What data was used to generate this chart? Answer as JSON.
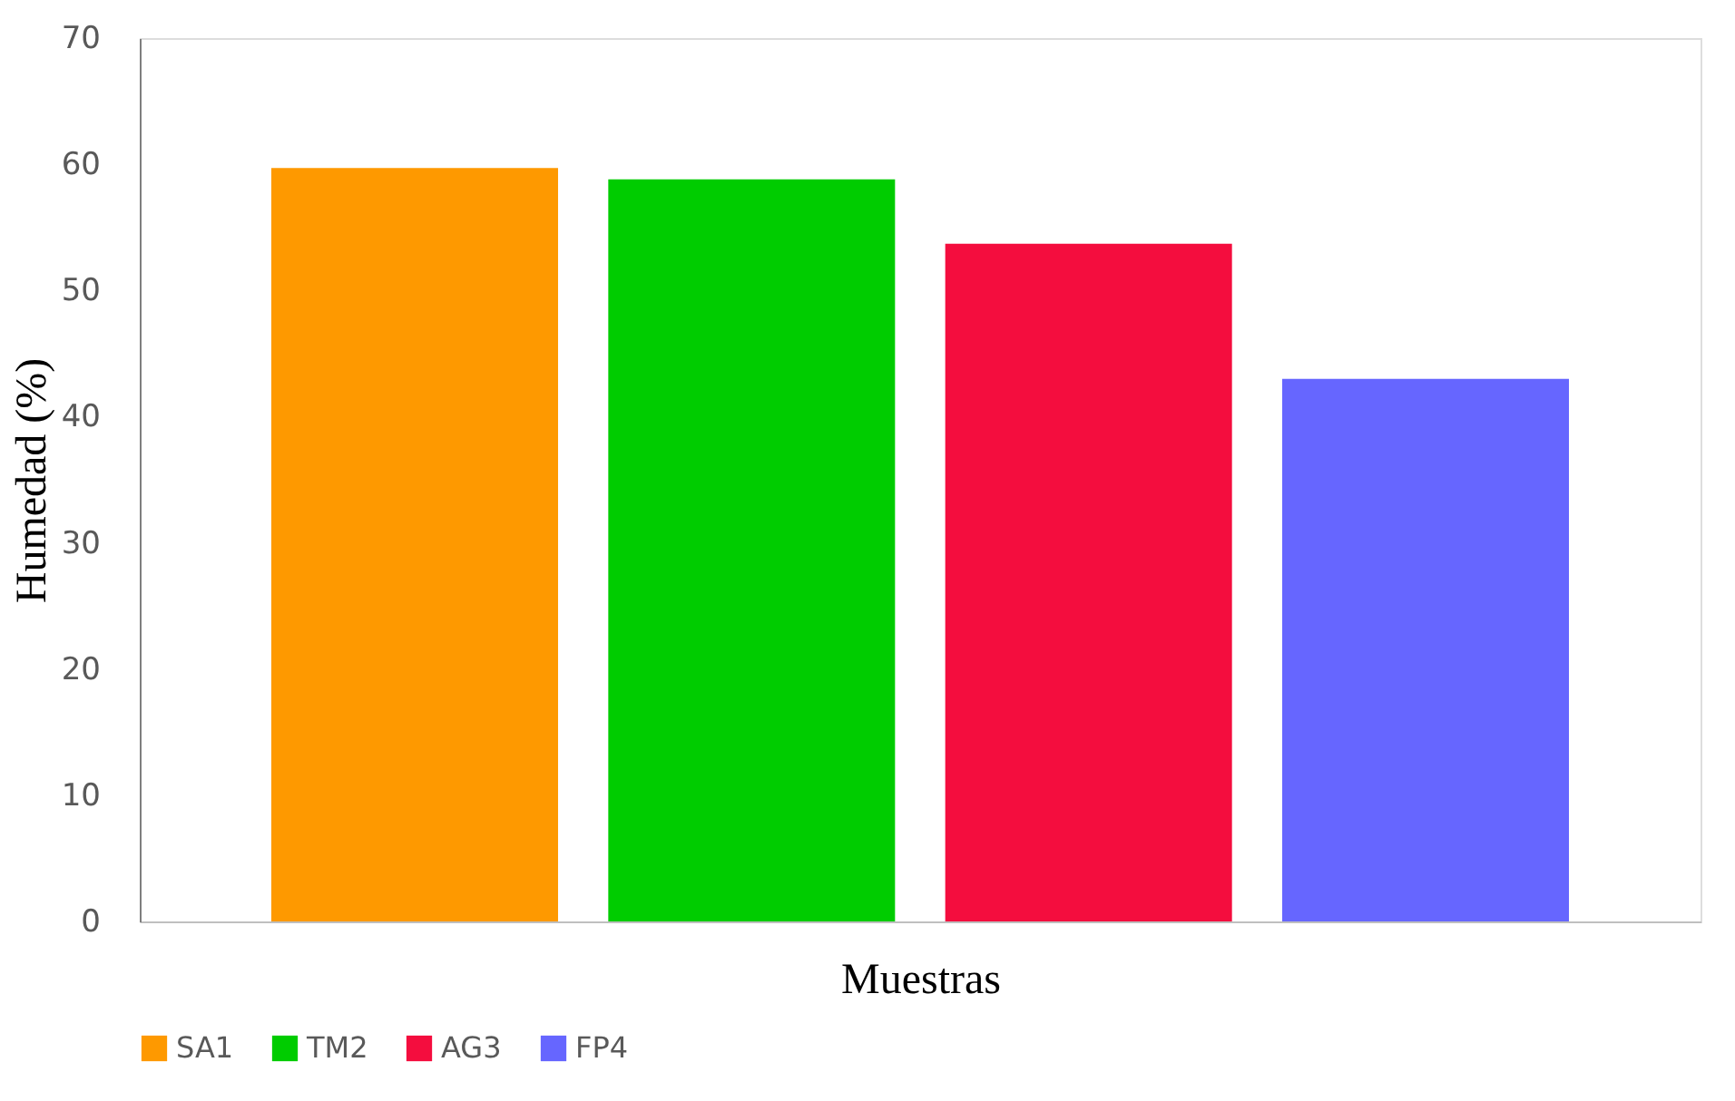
{
  "chart_data": {
    "type": "bar",
    "xlabel": "Muestras",
    "ylabel": "Humedad (%)",
    "categories": [
      null
    ],
    "series": [
      {
        "name": "SA1",
        "color": "#fe9900",
        "values": [
          59.7
        ]
      },
      {
        "name": "TM2",
        "color": "#00cc00",
        "values": [
          58.8
        ]
      },
      {
        "name": "AG3",
        "color": "#f40d3e",
        "values": [
          53.7
        ]
      },
      {
        "name": "FP4",
        "color": "#6666ff",
        "values": [
          43.0
        ]
      }
    ],
    "ylim": [
      0,
      70
    ],
    "yticks": [
      0,
      10,
      20,
      30,
      40,
      50,
      60,
      70
    ],
    "grid": false,
    "legend": "bottom"
  }
}
